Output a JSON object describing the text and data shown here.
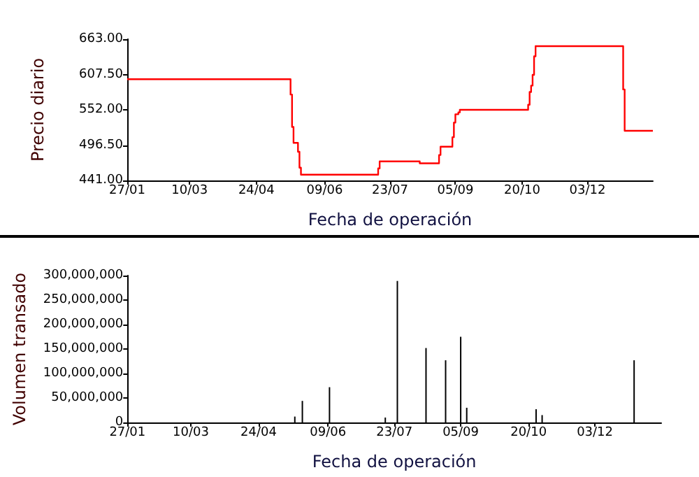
{
  "chart_data": [
    {
      "type": "step",
      "xlabel": "Fecha de operación",
      "ylabel": "Precio diario",
      "xlim": [
        "2010-01-27",
        "2011-01-16"
      ],
      "ylim": [
        441,
        663
      ],
      "xticks": [
        {
          "value": "2010-01-27",
          "label": "27/01"
        },
        {
          "value": "2010-03-10",
          "label": "10/03"
        },
        {
          "value": "2010-04-24",
          "label": "24/04"
        },
        {
          "value": "2010-06-09",
          "label": "09/06"
        },
        {
          "value": "2010-07-23",
          "label": "23/07"
        },
        {
          "value": "2010-09-05",
          "label": "05/09"
        },
        {
          "value": "2010-10-20",
          "label": "20/10"
        },
        {
          "value": "2010-12-03",
          "label": "03/12"
        }
      ],
      "yticks": [
        {
          "value": 441,
          "label": "441.00"
        },
        {
          "value": 496.5,
          "label": "496.50"
        },
        {
          "value": 552,
          "label": "552.00"
        },
        {
          "value": 607.5,
          "label": "607.50"
        },
        {
          "value": 663,
          "label": "663.00"
        }
      ],
      "grid": false,
      "series": [
        {
          "color": "#ff0000",
          "x": [
            "2010-01-27",
            "2010-05-17",
            "2010-05-18",
            "2010-05-19",
            "2010-05-22",
            "2010-05-23",
            "2010-05-24",
            "2010-07-15",
            "2010-07-16",
            "2010-08-12",
            "2010-08-25",
            "2010-08-26",
            "2010-09-03",
            "2010-09-04",
            "2010-09-05",
            "2010-09-07",
            "2010-09-08",
            "2010-10-24",
            "2010-10-25",
            "2010-10-26",
            "2010-10-27",
            "2010-10-28",
            "2010-10-29",
            "2010-12-27",
            "2010-12-28",
            "2011-01-16"
          ],
          "values": [
            600,
            576,
            525,
            500,
            486,
            461,
            450,
            460,
            471,
            468,
            481,
            494,
            509,
            532,
            545,
            548,
            552,
            560,
            580,
            590,
            607,
            636,
            652,
            584,
            519,
            519
          ]
        }
      ]
    },
    {
      "type": "bar",
      "xlabel": "Fecha de operación",
      "ylabel": "Volumen transado",
      "xlim": [
        "2010-01-27",
        "2011-01-16"
      ],
      "ylim": [
        0,
        300000000
      ],
      "xticks": [
        {
          "value": "2010-01-27",
          "label": "27/01"
        },
        {
          "value": "2010-03-10",
          "label": "10/03"
        },
        {
          "value": "2010-04-24",
          "label": "24/04"
        },
        {
          "value": "2010-06-09",
          "label": "09/06"
        },
        {
          "value": "2010-07-23",
          "label": "23/07"
        },
        {
          "value": "2010-09-05",
          "label": "05/09"
        },
        {
          "value": "2010-10-20",
          "label": "20/10"
        },
        {
          "value": "2010-12-03",
          "label": "03/12"
        }
      ],
      "yticks": [
        0,
        {
          "value": 50000000,
          "label": "50,000,000"
        },
        {
          "value": 100000000,
          "label": "100,000,000"
        },
        {
          "value": 150000000,
          "label": "150,000,000"
        },
        {
          "value": 200000000,
          "label": "200,000,000"
        },
        {
          "value": 250000000,
          "label": "250,000,000"
        },
        {
          "value": 300000000,
          "label": "300,000,000"
        }
      ],
      "grid": false,
      "series": [
        {
          "color": "#000000",
          "x": [
            "2010-05-18",
            "2010-05-23",
            "2010-06-10",
            "2010-07-17",
            "2010-07-25",
            "2010-08-13",
            "2010-08-26",
            "2010-09-05",
            "2010-09-09",
            "2010-10-25",
            "2010-10-29",
            "2010-12-29"
          ],
          "values": [
            12000000,
            44000000,
            72000000,
            10000000,
            289000000,
            152000000,
            127000000,
            175000000,
            30000000,
            27000000,
            15000000,
            127000000
          ]
        }
      ]
    }
  ]
}
